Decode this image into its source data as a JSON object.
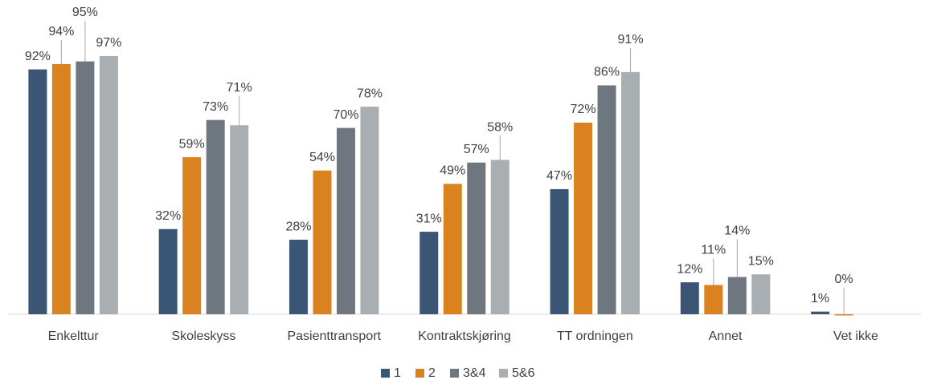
{
  "chart_data": {
    "type": "bar",
    "categories": [
      "Enkelttur",
      "Skoleskyss",
      "Pasienttransport",
      "Kontraktskjøring",
      "TT ordningen",
      "Annet",
      "Vet ikke"
    ],
    "series": [
      {
        "name": "1",
        "color": "#3b5675",
        "values": [
          92,
          32,
          28,
          31,
          47,
          12,
          1
        ],
        "value_labels": [
          "92%",
          "32%",
          "28%",
          "31%",
          "47%",
          "12%",
          "1%"
        ]
      },
      {
        "name": "2",
        "color": "#d9821f",
        "values": [
          94,
          59,
          54,
          49,
          72,
          11,
          0
        ],
        "value_labels": [
          "94%",
          "59%",
          "54%",
          "49%",
          "72%",
          "11%",
          "0%"
        ]
      },
      {
        "name": "3&4",
        "color": "#6e7780",
        "values": [
          95,
          73,
          70,
          57,
          86,
          14,
          null
        ],
        "value_labels": [
          "95%",
          "73%",
          "70%",
          "57%",
          "86%",
          "14%",
          null
        ]
      },
      {
        "name": "5&6",
        "color": "#a9aeb3",
        "values": [
          97,
          71,
          78,
          58,
          91,
          15,
          null
        ],
        "value_labels": [
          "97%",
          "71%",
          "78%",
          "58%",
          "91%",
          "15%",
          null
        ]
      }
    ],
    "ylim": [
      0,
      100
    ],
    "legend": "bottom"
  }
}
